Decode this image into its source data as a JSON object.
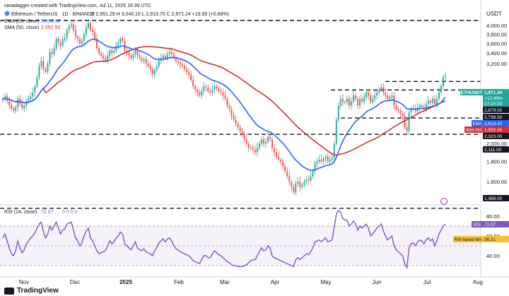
{
  "header": {
    "line1": "ranadagger created with TradingView.com, Jul 11, 2025 16:39 UTC",
    "symbol": "Ethereum / TetherUS · 1D · BINANCE",
    "ohlc": "O 2,951.29  H 3,040.15  L 2,913.75  C 2,971.24  +19.95 (+0.68%)",
    "ema_label": "EMA (20, close)",
    "ema_value": "2,613.42",
    "sma_label": "SMA (50, close)",
    "sma_value": "2,552.50",
    "rsi_label": "RSI (14, close)",
    "rsi_value": "72.07",
    "rsi_extra": "0 0 0 0"
  },
  "price_axis": {
    "currency": "USDT",
    "ticks": [
      "4,000.00",
      "3,800.00",
      "3,600.00",
      "3,400.00",
      "3,200.00",
      "2,000.00",
      "1,800.00",
      "1,600.00"
    ],
    "tick_values": [
      4000,
      3800,
      3600,
      3400,
      3200,
      2000,
      1800,
      1600
    ],
    "scale": "log"
  },
  "rsi_axis": {
    "ticks": [
      "80.00",
      "60.00",
      "40.00"
    ],
    "tick_values": [
      80,
      60,
      40
    ]
  },
  "time_axis": {
    "labels": [
      "Nov",
      "Dec",
      "2025",
      "Feb",
      "Mar",
      "Apr",
      "May",
      "Jun",
      "Jul",
      "Aug"
    ]
  },
  "badges": {
    "ethusdt": "ETHUSDT",
    "price": "2,971.24",
    "pct": "+12.45%",
    "countdown": "07:20:33",
    "level_2879": "2,879.00",
    "level_2738": "2,738.50",
    "ema_tag": "EMA",
    "ema_val": "2,613.42",
    "sma_tag": "SMA-MA",
    "sma_val": "2,552.50",
    "level_2323": "2,323.00",
    "level_2111": "2,111.00",
    "level_1368": "1,368.00",
    "rsi_tag": "RSI",
    "rsi_val": "72.07",
    "rsima_tag": "RSI-based MA",
    "rsima_val": "56.31"
  },
  "footer": {
    "brand": "TradingView"
  },
  "colors": {
    "up": "#26a69a",
    "down": "#ef5350",
    "ema": "#2962ff",
    "sma": "#d32f2f",
    "rsi": "#7e57c2",
    "level": "#131722"
  },
  "chart_data": {
    "type": "candlestick",
    "price": {
      "closes": [
        2600,
        2640,
        2570,
        2510,
        2460,
        2430,
        2470,
        2600,
        2520,
        2460,
        2500,
        2560,
        2600,
        2640,
        2700,
        2800,
        2950,
        3150,
        3250,
        3100,
        3050,
        3200,
        3420,
        3380,
        3500,
        3700,
        3620,
        3550,
        3680,
        3720,
        3900,
        3980,
        4020,
        3900,
        3750,
        3700,
        3600,
        3650,
        3800,
        3950,
        4050,
        3900,
        3850,
        3700,
        3500,
        3400,
        3350,
        3300,
        3250,
        3350,
        3450,
        3400,
        3450,
        3550,
        3600,
        3700,
        3650,
        3450,
        3400,
        3350,
        3300,
        3380,
        3450,
        3350,
        3300,
        3250,
        3280,
        3200,
        3150,
        3100,
        3000,
        3080,
        3150,
        3250,
        3300,
        3350,
        3300,
        3380,
        3420,
        3380,
        3300,
        3250,
        3220,
        3180,
        3150,
        3100,
        3050,
        3000,
        2900,
        2800,
        2750,
        2700,
        2650,
        2720,
        2800,
        2780,
        2720,
        2700,
        2750,
        2800,
        2760,
        2720,
        2700,
        2650,
        2600,
        2500,
        2450,
        2350,
        2300,
        2250,
        2200,
        2150,
        2100,
        2050,
        2000,
        1950,
        1950,
        1930,
        1900,
        1950,
        2000,
        2050,
        2000,
        2020,
        2080,
        2050,
        1950,
        1900,
        1850,
        1820,
        1800,
        1750,
        1700,
        1650,
        1600,
        1550,
        1500,
        1580,
        1600,
        1550,
        1570,
        1600,
        1620,
        1610,
        1650,
        1700,
        1780,
        1800,
        1820,
        1800,
        1830,
        1850,
        1800,
        1820,
        1840,
        2000,
        2300,
        2500,
        2600,
        2550,
        2550,
        2600,
        2500,
        2560,
        2650,
        2600,
        2500,
        2600,
        2560,
        2620,
        2700,
        2650,
        2550,
        2600,
        2650,
        2700,
        2750,
        2780,
        2700,
        2650,
        2600,
        2620,
        2650,
        2500,
        2450,
        2420,
        2380,
        2350,
        2200,
        2150,
        2400,
        2450,
        2460,
        2420,
        2470,
        2500,
        2480,
        2450,
        2520,
        2570,
        2540,
        2600,
        2520,
        2600,
        2700,
        2800,
        2950,
        2971.24
      ],
      "ema20_last": 2613.42,
      "sma50_last": 2552.5,
      "levels": [
        2879.0,
        2738.5,
        2323.0,
        2111.0,
        1368.0
      ],
      "last_price": 2971.24,
      "change_pct": 12.45
    },
    "rsi": {
      "values": [
        58,
        62,
        55,
        48,
        42,
        40,
        45,
        55,
        48,
        43,
        46,
        52,
        55,
        58,
        60,
        63,
        68,
        72,
        74,
        64,
        58,
        62,
        70,
        66,
        70,
        74,
        68,
        62,
        66,
        67,
        72,
        73,
        74,
        66,
        58,
        55,
        50,
        53,
        60,
        65,
        68,
        58,
        55,
        50,
        45,
        42,
        43,
        44,
        45,
        50,
        55,
        52,
        54,
        58,
        60,
        64,
        62,
        52,
        50,
        48,
        46,
        50,
        54,
        48,
        46,
        45,
        47,
        44,
        43,
        42,
        40,
        45,
        48,
        53,
        55,
        57,
        54,
        57,
        58,
        55,
        50,
        47,
        46,
        44,
        43,
        42,
        41,
        40,
        38,
        35,
        34,
        33,
        32,
        36,
        40,
        40,
        38,
        38,
        42,
        45,
        43,
        41,
        40,
        38,
        36,
        34,
        33,
        31,
        30,
        30,
        29,
        29,
        29,
        30,
        31,
        33,
        35,
        36,
        36,
        40,
        44,
        48,
        45,
        46,
        50,
        48,
        40,
        38,
        37,
        36,
        35,
        34,
        33,
        32,
        31,
        30,
        29,
        36,
        38,
        36,
        38,
        40,
        42,
        41,
        44,
        48,
        54,
        55,
        56,
        54,
        56,
        58,
        54,
        55,
        56,
        68,
        82,
        86,
        84,
        78,
        76,
        76,
        70,
        72,
        75,
        72,
        66,
        70,
        68,
        70,
        72,
        68,
        60,
        62,
        65,
        68,
        70,
        72,
        65,
        60,
        56,
        58,
        60,
        50,
        46,
        44,
        42,
        40,
        32,
        28,
        48,
        52,
        53,
        50,
        54,
        56,
        55,
        52,
        56,
        58,
        55,
        57,
        50,
        55,
        62,
        66,
        70,
        72.07
      ],
      "ma_last": 56.31,
      "levels": [
        70,
        50,
        30
      ],
      "ylim": [
        20,
        95
      ]
    }
  }
}
